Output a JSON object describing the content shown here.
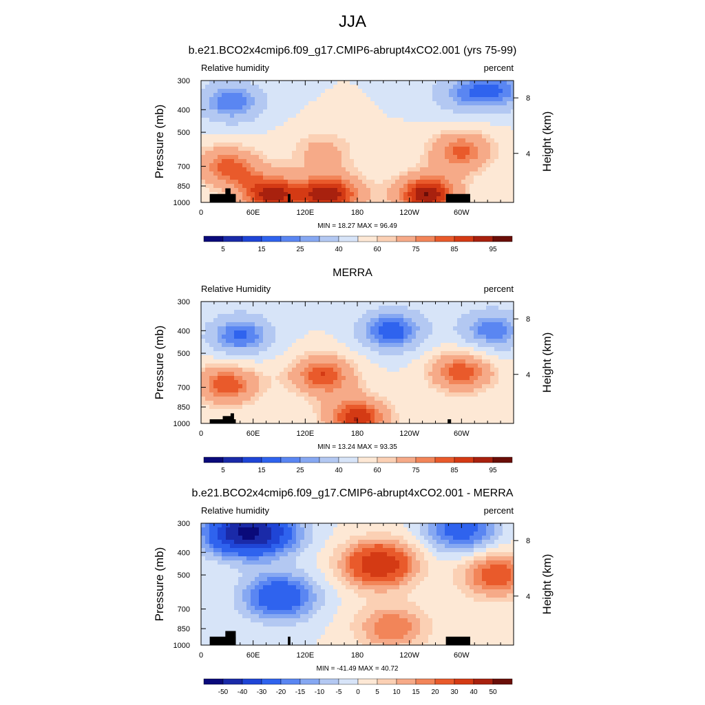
{
  "figure_title": "JJA",
  "chart_data": [
    {
      "type": "heatmap",
      "title": "b.e21.BCO2x4cmip6.f09_g17.CMIP6-abrupt4xCO2.001 (yrs 75-99)",
      "left_label": "Relative humidity",
      "right_label": "percent",
      "ylabel": "Pressure (mb)",
      "ylabel_right": "Height (km)",
      "x_ticks": [
        "0",
        "60E",
        "120E",
        "180",
        "120W",
        "60W"
      ],
      "x_range": [
        0,
        360
      ],
      "y_ticks": [
        "300",
        "400",
        "500",
        "700",
        "850",
        "1000"
      ],
      "y_range": [
        300,
        1000
      ],
      "y_scale": "log",
      "height_ticks": [
        "8",
        "4"
      ],
      "stats": "MIN = 18.27  MAX = 96.49",
      "colorbar": {
        "levels": [
          5,
          10,
          15,
          20,
          25,
          30,
          40,
          50,
          60,
          65,
          75,
          80,
          85,
          90,
          95
        ],
        "labels": [
          "5",
          "15",
          "25",
          "40",
          "60",
          "75",
          "85",
          "95"
        ],
        "colors": [
          "#0a0a7a",
          "#1a2aa8",
          "#1f45d6",
          "#2f63ee",
          "#5a86f2",
          "#86a8f2",
          "#b3c8f2",
          "#d7e4f8",
          "#fde8d5",
          "#fbd0b4",
          "#f6aa88",
          "#f28559",
          "#e95a2b",
          "#d43a14",
          "#a8210e",
          "#6a0e08"
        ]
      },
      "fields": [
        {
          "x": 35,
          "p": 370,
          "value": 20
        },
        {
          "x": 345,
          "p": 330,
          "value": 25
        },
        {
          "x": 300,
          "p": 340,
          "value": 30
        },
        {
          "x": 140,
          "p": 600,
          "value": 68
        },
        {
          "x": 260,
          "p": 930,
          "value": 95
        },
        {
          "x": 80,
          "p": 930,
          "value": 90
        },
        {
          "x": 150,
          "p": 930,
          "value": 92
        },
        {
          "x": 300,
          "p": 600,
          "value": 82
        },
        {
          "x": 30,
          "p": 700,
          "value": 82
        }
      ],
      "topography": [
        {
          "x0": 10,
          "x1": 40,
          "p_top": 920
        },
        {
          "x0": 28,
          "x1": 34,
          "p_top": 870
        },
        {
          "x0": 100,
          "x1": 103,
          "p_top": 920
        },
        {
          "x0": 282,
          "x1": 310,
          "p_top": 920
        }
      ]
    },
    {
      "type": "heatmap",
      "title": "MERRA",
      "left_label": "Relative Humidity",
      "right_label": "percent",
      "ylabel": "Pressure (mb)",
      "ylabel_right": "Height (km)",
      "x_ticks": [
        "0",
        "60E",
        "120E",
        "180",
        "120W",
        "60W"
      ],
      "x_range": [
        0,
        360
      ],
      "y_ticks": [
        "300",
        "400",
        "500",
        "700",
        "850",
        "1000"
      ],
      "y_range": [
        300,
        1000
      ],
      "y_scale": "log",
      "height_ticks": [
        "8",
        "4"
      ],
      "stats": "MIN = 13.24  MAX = 93.35",
      "colorbar": {
        "levels": [
          5,
          10,
          15,
          20,
          25,
          30,
          40,
          50,
          60,
          65,
          75,
          80,
          85,
          90,
          95
        ],
        "labels": [
          "5",
          "15",
          "25",
          "40",
          "60",
          "75",
          "85",
          "95"
        ],
        "colors": [
          "#0a0a7a",
          "#1a2aa8",
          "#1f45d6",
          "#2f63ee",
          "#5a86f2",
          "#86a8f2",
          "#b3c8f2",
          "#d7e4f8",
          "#fde8d5",
          "#fbd0b4",
          "#f6aa88",
          "#f28559",
          "#e95a2b",
          "#d43a14",
          "#a8210e",
          "#6a0e08"
        ]
      },
      "fields": [
        {
          "x": 220,
          "p": 400,
          "value": 15
        },
        {
          "x": 45,
          "p": 420,
          "value": 18
        },
        {
          "x": 335,
          "p": 400,
          "value": 20
        },
        {
          "x": 140,
          "p": 620,
          "value": 85
        },
        {
          "x": 30,
          "p": 680,
          "value": 85
        },
        {
          "x": 300,
          "p": 600,
          "value": 85
        },
        {
          "x": 180,
          "p": 950,
          "value": 90
        }
      ],
      "topography": [
        {
          "x0": 10,
          "x1": 40,
          "p_top": 960
        },
        {
          "x0": 25,
          "x1": 35,
          "p_top": 930
        },
        {
          "x0": 34,
          "x1": 38,
          "p_top": 905
        },
        {
          "x0": 284,
          "x1": 288,
          "p_top": 960
        }
      ]
    },
    {
      "type": "heatmap",
      "title": "b.e21.BCO2x4cmip6.f09_g17.CMIP6-abrupt4xCO2.001 - MERRA",
      "left_label": "Relative humidity",
      "right_label": "percent",
      "ylabel": "Pressure (mb)",
      "ylabel_right": "Height (km)",
      "x_ticks": [
        "0",
        "60E",
        "120E",
        "180",
        "120W",
        "60W"
      ],
      "x_range": [
        0,
        360
      ],
      "y_ticks": [
        "300",
        "400",
        "500",
        "700",
        "850",
        "1000"
      ],
      "y_range": [
        300,
        1000
      ],
      "y_scale": "log",
      "height_ticks": [
        "8",
        "4"
      ],
      "stats": "MIN = -41.49  MAX = 40.72",
      "colorbar": {
        "levels": [
          -50,
          -40,
          -30,
          -20,
          -15,
          -10,
          -5,
          0,
          5,
          10,
          15,
          20,
          30,
          40,
          50
        ],
        "labels": [
          "-50",
          "-40",
          "-30",
          "-20",
          "-15",
          "-10",
          "-5",
          "0",
          "5",
          "10",
          "15",
          "20",
          "30",
          "40",
          "50"
        ],
        "colors": [
          "#0a0a7a",
          "#1a2aa8",
          "#1f45d6",
          "#2f63ee",
          "#5a86f2",
          "#86a8f2",
          "#b3c8f2",
          "#d7e4f8",
          "#fde8d5",
          "#fbd0b4",
          "#f6aa88",
          "#f28559",
          "#e95a2b",
          "#d43a14",
          "#a8210e",
          "#6a0e08"
        ]
      },
      "fields": [
        {
          "x": 205,
          "p": 450,
          "value": 40
        },
        {
          "x": 40,
          "p": 330,
          "value": -35
        },
        {
          "x": 90,
          "p": 620,
          "value": -30
        },
        {
          "x": 75,
          "p": 330,
          "value": -30
        },
        {
          "x": 300,
          "p": 320,
          "value": -25
        },
        {
          "x": 340,
          "p": 500,
          "value": 25
        },
        {
          "x": 220,
          "p": 840,
          "value": 20
        }
      ],
      "topography": [
        {
          "x0": 10,
          "x1": 40,
          "p_top": 920
        },
        {
          "x0": 28,
          "x1": 40,
          "p_top": 870
        },
        {
          "x0": 100,
          "x1": 103,
          "p_top": 920
        },
        {
          "x0": 282,
          "x1": 310,
          "p_top": 920
        }
      ]
    }
  ]
}
